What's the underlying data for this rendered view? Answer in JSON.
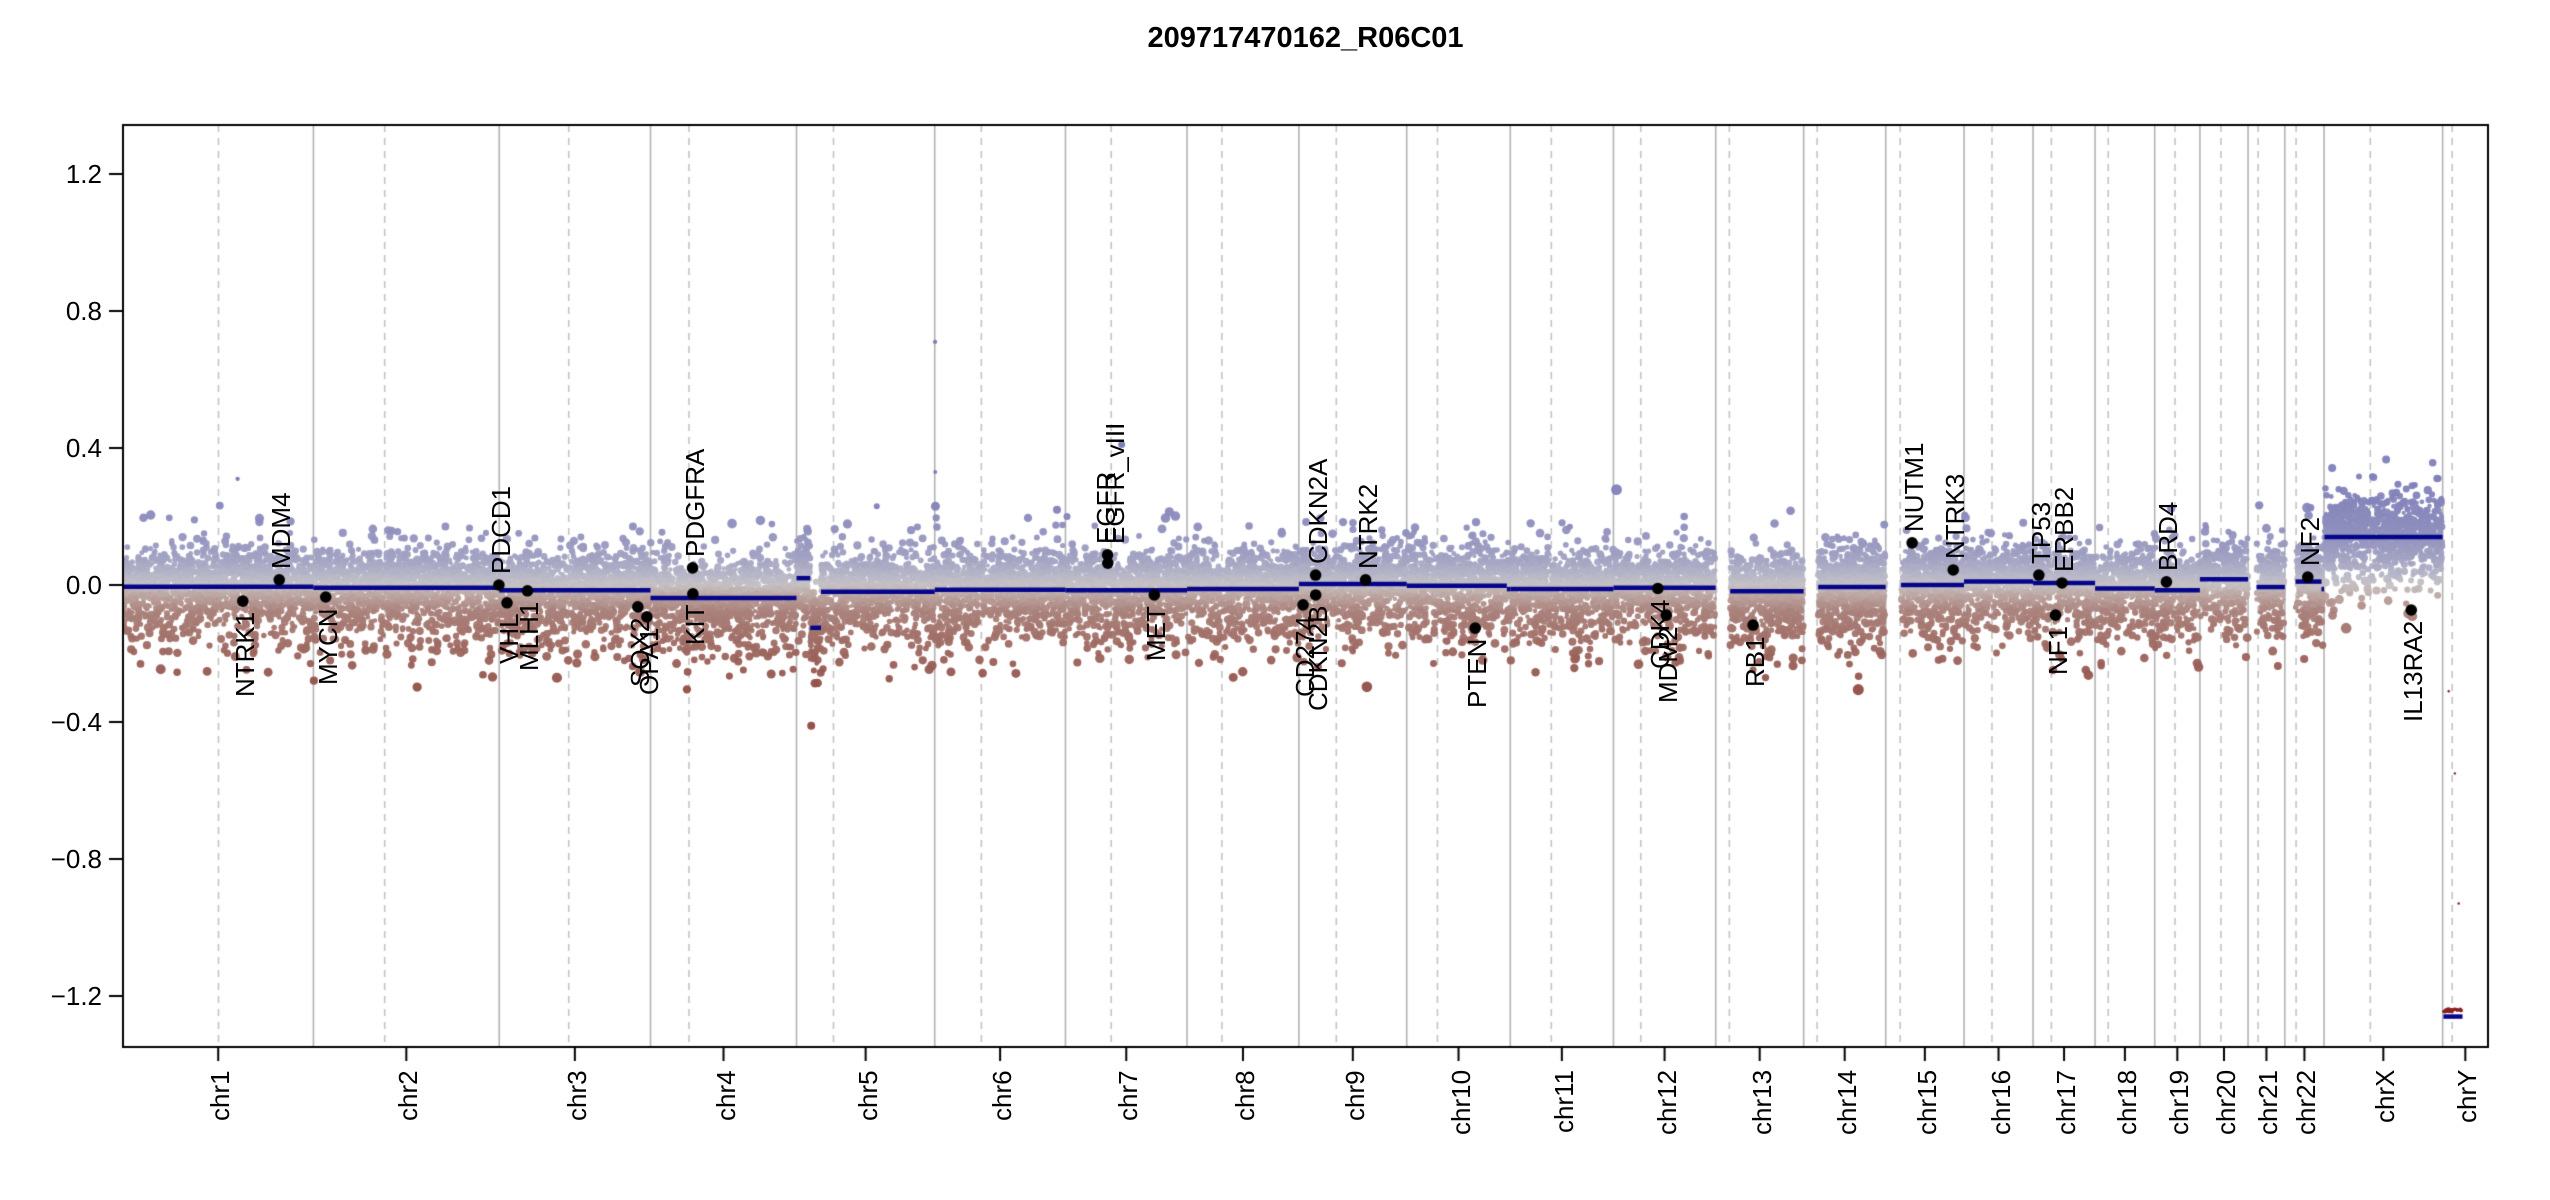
{
  "title": "209717470162_R06C01",
  "axes": {
    "y_ticks": [
      1.2,
      0.8,
      0.4,
      0.0,
      -0.4,
      -0.8,
      -1.2
    ],
    "y_tick_labels": [
      "1.2",
      "0.8",
      "0.4",
      "0.0",
      "−0.4",
      "−0.8",
      "−1.2"
    ],
    "ylim": [
      -1.35,
      1.34
    ],
    "x_axis_unit": "chromosome"
  },
  "chart_data": {
    "type": "scatter",
    "title": "209717470162_R06C01",
    "description": "Genome-wide copy-number plot (log2 ratio) across chromosomes with segmentation lines and annotated cancer genes",
    "chromosomes": [
      {
        "name": "chr1",
        "length_mb": 249.25,
        "centromere_mb": 125.0,
        "probe_start_mb": 0.3
      },
      {
        "name": "chr2",
        "length_mb": 243.2,
        "centromere_mb": 93.3,
        "probe_start_mb": 0.3
      },
      {
        "name": "chr3",
        "length_mb": 198.02,
        "centromere_mb": 91.0,
        "probe_start_mb": 0.3
      },
      {
        "name": "chr4",
        "length_mb": 191.15,
        "centromere_mb": 50.4,
        "probe_start_mb": 0.3
      },
      {
        "name": "chr5",
        "length_mb": 180.92,
        "centromere_mb": 48.4,
        "probe_start_mb": 0.3
      },
      {
        "name": "chr6",
        "length_mb": 171.12,
        "centromere_mb": 61.0,
        "probe_start_mb": 0.3
      },
      {
        "name": "chr7",
        "length_mb": 159.14,
        "centromere_mb": 59.9,
        "probe_start_mb": 0.3
      },
      {
        "name": "chr8",
        "length_mb": 146.36,
        "centromere_mb": 45.6,
        "probe_start_mb": 0.3
      },
      {
        "name": "chr9",
        "length_mb": 141.21,
        "centromere_mb": 49.0,
        "probe_start_mb": 0.3
      },
      {
        "name": "chr10",
        "length_mb": 135.53,
        "centromere_mb": 40.2,
        "probe_start_mb": 0.3
      },
      {
        "name": "chr11",
        "length_mb": 135.01,
        "centromere_mb": 53.7,
        "probe_start_mb": 0.3
      },
      {
        "name": "chr12",
        "length_mb": 133.85,
        "centromere_mb": 35.8,
        "probe_start_mb": 0.3
      },
      {
        "name": "chr13",
        "length_mb": 115.17,
        "centromere_mb": 17.9,
        "probe_start_mb": 19
      },
      {
        "name": "chr14",
        "length_mb": 107.35,
        "centromere_mb": 17.6,
        "probe_start_mb": 19
      },
      {
        "name": "chr15",
        "length_mb": 102.53,
        "centromere_mb": 19.0,
        "probe_start_mb": 20
      },
      {
        "name": "chr16",
        "length_mb": 90.35,
        "centromere_mb": 36.6,
        "probe_start_mb": 0.3
      },
      {
        "name": "chr17",
        "length_mb": 81.2,
        "centromere_mb": 24.0,
        "probe_start_mb": 0.3
      },
      {
        "name": "chr18",
        "length_mb": 78.08,
        "centromere_mb": 17.2,
        "probe_start_mb": 0.3
      },
      {
        "name": "chr19",
        "length_mb": 59.13,
        "centromere_mb": 26.5,
        "probe_start_mb": 0.3
      },
      {
        "name": "chr20",
        "length_mb": 63.03,
        "centromere_mb": 27.5,
        "probe_start_mb": 0.3
      },
      {
        "name": "chr21",
        "length_mb": 48.13,
        "centromere_mb": 13.2,
        "probe_start_mb": 11
      },
      {
        "name": "chr22",
        "length_mb": 51.3,
        "centromere_mb": 14.7,
        "probe_start_mb": 14
      },
      {
        "name": "chrX",
        "length_mb": 155.27,
        "centromere_mb": 60.6,
        "probe_start_mb": 0.5
      },
      {
        "name": "chrY",
        "length_mb": 59.37,
        "centromere_mb": 12.5,
        "probe_start_mb": 1,
        "no_cloud": true
      }
    ],
    "segments": [
      {
        "chr": "chr1",
        "start_mb": 0,
        "end_mb": 249.25,
        "value": -0.005
      },
      {
        "chr": "chr2",
        "start_mb": 0,
        "end_mb": 243.2,
        "value": -0.008
      },
      {
        "chr": "chr3",
        "start_mb": 0,
        "end_mb": 198.02,
        "value": -0.015
      },
      {
        "chr": "chr4",
        "start_mb": 0,
        "end_mb": 191.15,
        "value": -0.038
      },
      {
        "chr": "chr5",
        "start_mb": 0,
        "end_mb": 18,
        "value": 0.02
      },
      {
        "chr": "chr5",
        "start_mb": 18,
        "end_mb": 32,
        "value": -0.125
      },
      {
        "chr": "chr5",
        "start_mb": 32,
        "end_mb": 180.92,
        "value": -0.02
      },
      {
        "chr": "chr6",
        "start_mb": 0,
        "end_mb": 171.12,
        "value": -0.014
      },
      {
        "chr": "chr7",
        "start_mb": 0,
        "end_mb": 159.14,
        "value": -0.015
      },
      {
        "chr": "chr8",
        "start_mb": 0,
        "end_mb": 146.36,
        "value": -0.012
      },
      {
        "chr": "chr9",
        "start_mb": 0,
        "end_mb": 141.21,
        "value": 0.003
      },
      {
        "chr": "chr10",
        "start_mb": 0,
        "end_mb": 131,
        "value": -0.002
      },
      {
        "chr": "chr10",
        "start_mb": 131,
        "end_mb": 135.53,
        "value": -0.012
      },
      {
        "chr": "chr11",
        "start_mb": 0,
        "end_mb": 135.01,
        "value": -0.012
      },
      {
        "chr": "chr12",
        "start_mb": 0,
        "end_mb": 133.85,
        "value": -0.008
      },
      {
        "chr": "chr13",
        "start_mb": 19,
        "end_mb": 115.17,
        "value": -0.018
      },
      {
        "chr": "chr14",
        "start_mb": 19,
        "end_mb": 107.35,
        "value": -0.006
      },
      {
        "chr": "chr15",
        "start_mb": 20,
        "end_mb": 102.53,
        "value": 0.0
      },
      {
        "chr": "chr16",
        "start_mb": 0,
        "end_mb": 90.35,
        "value": 0.01
      },
      {
        "chr": "chr17",
        "start_mb": 0,
        "end_mb": 81.2,
        "value": 0.006
      },
      {
        "chr": "chr18",
        "start_mb": 0,
        "end_mb": 78.08,
        "value": -0.01
      },
      {
        "chr": "chr19",
        "start_mb": 0,
        "end_mb": 59.13,
        "value": -0.015
      },
      {
        "chr": "chr20",
        "start_mb": 0,
        "end_mb": 63.03,
        "value": 0.017
      },
      {
        "chr": "chr21",
        "start_mb": 11,
        "end_mb": 48.13,
        "value": -0.006
      },
      {
        "chr": "chr22",
        "start_mb": 14,
        "end_mb": 48,
        "value": 0.01
      },
      {
        "chr": "chr22",
        "start_mb": 48,
        "end_mb": 51.3,
        "value": -0.012
      },
      {
        "chr": "chrX",
        "start_mb": 0.5,
        "end_mb": 155.27,
        "value": 0.14
      },
      {
        "chr": "chrY",
        "start_mb": 1,
        "end_mb": 26,
        "value": -1.26
      }
    ],
    "genes": [
      {
        "name": "NTRK1",
        "chr": "chr1",
        "mb": 156.8,
        "value": -0.047,
        "side": "below"
      },
      {
        "name": "MDM4",
        "chr": "chr1",
        "mb": 204.5,
        "value": 0.015,
        "side": "above"
      },
      {
        "name": "MYCN",
        "chr": "chr2",
        "mb": 16.1,
        "value": -0.035,
        "side": "below"
      },
      {
        "name": "PDCD1",
        "chr": "chr2",
        "mb": 242.8,
        "value": 0.0,
        "side": "above"
      },
      {
        "name": "VHL",
        "chr": "chr3",
        "mb": 10.2,
        "value": -0.052,
        "side": "below"
      },
      {
        "name": "MLH1",
        "chr": "chr3",
        "mb": 37.0,
        "value": -0.017,
        "side": "below"
      },
      {
        "name": "SOX2",
        "chr": "chr3",
        "mb": 181.4,
        "value": -0.064,
        "side": "below"
      },
      {
        "name": "OPA1",
        "chr": "chr3",
        "mb": 193.3,
        "value": -0.093,
        "side": "below"
      },
      {
        "name": "PDGFRA",
        "chr": "chr4",
        "mb": 55.1,
        "value": 0.05,
        "side": "above"
      },
      {
        "name": "KIT",
        "chr": "chr4",
        "mb": 55.5,
        "value": -0.026,
        "side": "below"
      },
      {
        "name": "EGFR",
        "chr": "chr7",
        "mb": 55.1,
        "value": 0.088,
        "side": "above",
        "dx": -4
      },
      {
        "name": "EGFR_vIII",
        "chr": "chr7",
        "mb": 55.4,
        "value": 0.064,
        "side": "above",
        "dx": 5,
        "label_v": 0.088
      },
      {
        "name": "MET",
        "chr": "chr7",
        "mb": 116.3,
        "value": -0.029,
        "side": "below"
      },
      {
        "name": "CD274",
        "chr": "chr9",
        "mb": 5.5,
        "value": -0.058,
        "side": "below"
      },
      {
        "name": "CDKN2A",
        "chr": "chr9",
        "mb": 21.9,
        "value": 0.029,
        "side": "above"
      },
      {
        "name": "CDKN2B",
        "chr": "chr9",
        "mb": 22.0,
        "value": -0.029,
        "side": "below"
      },
      {
        "name": "NTRK2",
        "chr": "chr9",
        "mb": 87.3,
        "value": 0.015,
        "side": "above"
      },
      {
        "name": "PTEN",
        "chr": "chr10",
        "mb": 89.6,
        "value": -0.126,
        "side": "below"
      },
      {
        "name": "CDK4",
        "chr": "chr12",
        "mb": 58.1,
        "value": -0.01,
        "side": "below"
      },
      {
        "name": "MDM2",
        "chr": "chr12",
        "mb": 69.2,
        "value": -0.088,
        "side": "below"
      },
      {
        "name": "RB1",
        "chr": "chr13",
        "mb": 48.9,
        "value": -0.117,
        "side": "below"
      },
      {
        "name": "NUTM1",
        "chr": "chr15",
        "mb": 34.6,
        "value": 0.123,
        "side": "above"
      },
      {
        "name": "NTRK3",
        "chr": "chr15",
        "mb": 88.4,
        "value": 0.044,
        "side": "above"
      },
      {
        "name": "TP53",
        "chr": "chr17",
        "mb": 7.6,
        "value": 0.029,
        "side": "above"
      },
      {
        "name": "NF1",
        "chr": "chr17",
        "mb": 29.4,
        "value": -0.088,
        "side": "below"
      },
      {
        "name": "ERBB2",
        "chr": "chr17",
        "mb": 37.9,
        "value": 0.006,
        "side": "above"
      },
      {
        "name": "BRD4",
        "chr": "chr19",
        "mb": 15.3,
        "value": 0.009,
        "side": "above"
      },
      {
        "name": "NF2",
        "chr": "chr22",
        "mb": 30.0,
        "value": 0.023,
        "side": "above"
      },
      {
        "name": "IL13RA2",
        "chr": "chrX",
        "mb": 114.2,
        "value": -0.073,
        "side": "below"
      }
    ],
    "outliers": [
      {
        "chr": "chr1",
        "mb": 150,
        "value": 0.31,
        "r": 2.2
      },
      {
        "chr": "chr5",
        "mb": 105,
        "value": 0.23,
        "r": 3.0
      },
      {
        "chr": "chr6",
        "mb": 0.4,
        "value": 0.71,
        "r": 2.2
      },
      {
        "chr": "chr6",
        "mb": 0.6,
        "value": 0.33,
        "r": 2.0
      },
      {
        "chr": "chr6",
        "mb": 0.9,
        "value": 0.23,
        "r": 4.5
      },
      {
        "chr": "chr6",
        "mb": 160,
        "value": 0.22,
        "r": 4.0
      },
      {
        "chr": "chr7",
        "mb": 2,
        "value": 0.2,
        "r": 3.5
      },
      {
        "chr": "chr7",
        "mb": 73.5,
        "value": 0.41,
        "r": 3.5
      },
      {
        "chr": "chr11",
        "mb": 78,
        "value": 0.17,
        "r": 3.0
      },
      {
        "chr": "chrY",
        "mb": 8,
        "value": -0.31,
        "r": 1.2
      },
      {
        "chr": "chrY",
        "mb": 16,
        "value": -0.55,
        "r": 1.2
      },
      {
        "chr": "chrY",
        "mb": 21,
        "value": -0.93,
        "r": 1.2
      }
    ],
    "chrY_probe_row": {
      "start_mb": 1,
      "end_mb": 25.5,
      "value": -1.242,
      "jitter": 0.004,
      "n": 26,
      "r": 1.7
    },
    "noise_model": {
      "seed": 7,
      "points_per_mb": 8,
      "mixture": [
        {
          "w": 0.7,
          "mean": 0.018,
          "sd": 0.042
        },
        {
          "w": 0.2,
          "mean": -0.05,
          "sd": 0.045
        },
        {
          "w": 0.065,
          "mean": -0.115,
          "sd": 0.06
        },
        {
          "w": 0.035,
          "mean": 0.085,
          "sd": 0.065
        }
      ],
      "dev_clamp": [
        -0.38,
        0.3
      ]
    },
    "palette": {
      "color_stops": [
        [
          -0.32,
          "#8f4a42"
        ],
        [
          -0.16,
          "#a06e66"
        ],
        [
          -0.075,
          "#ab837d"
        ],
        [
          -0.03,
          "#bca6a2"
        ],
        [
          0.0,
          "#c6c2c4"
        ],
        [
          0.03,
          "#b6b6c8"
        ],
        [
          0.075,
          "#a3a3c3"
        ],
        [
          0.16,
          "#8f8fbe"
        ],
        [
          0.3,
          "#7f7fba"
        ]
      ],
      "segment_line": "#05058c",
      "gene_dot": "#000000",
      "chromosome_boundary": "#b3b3b3",
      "centromere_dash": "#c4c4c4",
      "chrY_probe": "#8b1f1f",
      "axis": "#000000"
    },
    "legend": null,
    "grid": {
      "chromosome_boundaries": true,
      "centromeres_dashed": true
    }
  }
}
